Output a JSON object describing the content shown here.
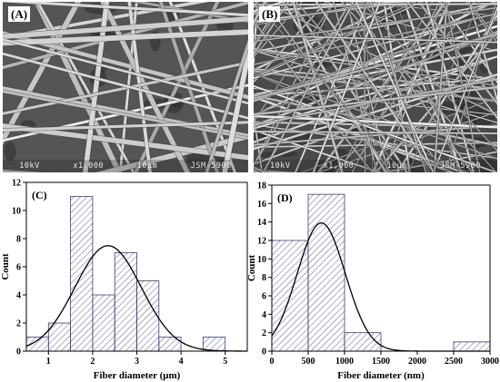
{
  "panels": {
    "A": {
      "label": "(A)",
      "footer": [
        "10kV",
        "x1,000",
        "10μm",
        "JSM-5900"
      ]
    },
    "B": {
      "label": "(B)",
      "footer": [
        "10kV",
        "x1,000",
        "10μm",
        "JSM-5900"
      ]
    }
  },
  "chart_data": [
    {
      "type": "bar",
      "panel_label": "(C)",
      "xlabel": "Fiber diameter (μm)",
      "ylabel": "Count",
      "xlim": [
        0.5,
        5.5
      ],
      "ylim": [
        0,
        12
      ],
      "xticks": [
        1,
        2,
        3,
        4,
        5
      ],
      "yticks": [
        0,
        2,
        4,
        6,
        8,
        10,
        12
      ],
      "bin_width": 0.5,
      "bins": [
        {
          "x0": 0.5,
          "x1": 1.0,
          "count": 1
        },
        {
          "x0": 1.0,
          "x1": 1.5,
          "count": 2
        },
        {
          "x0": 1.5,
          "x1": 2.0,
          "count": 11
        },
        {
          "x0": 2.0,
          "x1": 2.5,
          "count": 4
        },
        {
          "x0": 2.5,
          "x1": 3.0,
          "count": 7
        },
        {
          "x0": 3.0,
          "x1": 3.5,
          "count": 5
        },
        {
          "x0": 3.5,
          "x1": 4.0,
          "count": 1
        },
        {
          "x0": 4.0,
          "x1": 4.5,
          "count": 0
        },
        {
          "x0": 4.5,
          "x1": 5.0,
          "count": 1
        }
      ],
      "fit": {
        "type": "gaussian",
        "mean": 2.35,
        "sigma": 0.75,
        "peak": 7.5
      }
    },
    {
      "type": "bar",
      "panel_label": "(D)",
      "xlabel": "Fiber diameter (nm)",
      "ylabel": "Count",
      "xlim": [
        0,
        3000
      ],
      "ylim": [
        0,
        18
      ],
      "xticks": [
        0,
        500,
        1000,
        1500,
        2000,
        2500,
        3000
      ],
      "yticks": [
        0,
        2,
        4,
        6,
        8,
        10,
        12,
        14,
        16,
        18
      ],
      "bin_width": 500,
      "bins": [
        {
          "x0": 0,
          "x1": 500,
          "count": 12
        },
        {
          "x0": 500,
          "x1": 1000,
          "count": 17
        },
        {
          "x0": 1000,
          "x1": 1500,
          "count": 2
        },
        {
          "x0": 1500,
          "x1": 2000,
          "count": 0
        },
        {
          "x0": 2000,
          "x1": 2500,
          "count": 0
        },
        {
          "x0": 2500,
          "x1": 3000,
          "count": 1
        }
      ],
      "fit": {
        "type": "gaussian",
        "mean": 680,
        "sigma": 330,
        "peak": 13.9
      }
    }
  ],
  "colors": {
    "bar_edge": "#3a3f7a",
    "hatch": "#5a5fa0",
    "fit_line": "#000000"
  }
}
